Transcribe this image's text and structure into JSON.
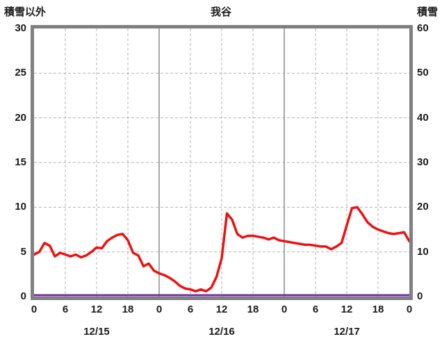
{
  "header": {
    "left_axis_title": "積雪以外",
    "title": "我谷",
    "right_axis_title": "積雪"
  },
  "colors": {
    "border": "#808080",
    "grid": "#b3b3b3",
    "day_line": "#8c8c8c",
    "text": "#1a1a1a",
    "red_line": "#ee1111",
    "purple_line": "#7030a0",
    "background": "#ffffff"
  },
  "chart_data": {
    "type": "line",
    "title": "我谷",
    "left_axis": {
      "label": "積雪以外",
      "min": 0,
      "max": 30,
      "ticks": [
        0,
        5,
        10,
        15,
        20,
        25,
        30
      ]
    },
    "right_axis": {
      "label": "積雪",
      "min": 0,
      "max": 60,
      "ticks": [
        0,
        10,
        20,
        30,
        40,
        50,
        60
      ]
    },
    "x_axis": {
      "hours_total": 72,
      "tick_interval": 6,
      "tick_labels": [
        "0",
        "6",
        "12",
        "18",
        "0",
        "6",
        "12",
        "18",
        "0",
        "6",
        "12",
        "18",
        "0"
      ],
      "day_labels": [
        "12/15",
        "12/16",
        "12/17"
      ],
      "day_boundaries_hours": [
        24,
        48
      ]
    },
    "grid": true,
    "legend": "none",
    "series": [
      {
        "name": "積雪以外",
        "axis": "left",
        "color": "#ee1111",
        "width": 3.5,
        "values": [
          4.7,
          5.0,
          6.0,
          5.7,
          4.5,
          4.9,
          4.7,
          4.5,
          4.7,
          4.4,
          4.6,
          5.0,
          5.5,
          5.4,
          6.2,
          6.6,
          6.9,
          7.0,
          6.3,
          4.9,
          4.6,
          3.4,
          3.7,
          2.9,
          2.6,
          2.4,
          2.1,
          1.7,
          1.2,
          0.9,
          0.8,
          0.6,
          0.8,
          0.6,
          1.0,
          2.2,
          4.3,
          9.3,
          8.6,
          7.0,
          6.6,
          6.8,
          6.8,
          6.7,
          6.6,
          6.4,
          6.6,
          6.3,
          6.2,
          6.1,
          6.0,
          5.9,
          5.8,
          5.8,
          5.7,
          5.6,
          5.6,
          5.3,
          5.6,
          6.0,
          8.0,
          9.9,
          10.0,
          9.2,
          8.3,
          7.8,
          7.5,
          7.3,
          7.1,
          7.0,
          7.1,
          7.2,
          6.2
        ]
      },
      {
        "name": "積雪",
        "axis": "right",
        "color": "#7030a0",
        "width": 3,
        "x_hours": [
          0,
          72
        ],
        "values": [
          0,
          0
        ]
      }
    ]
  }
}
